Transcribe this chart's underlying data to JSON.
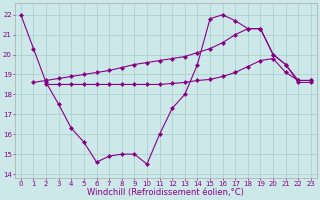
{
  "xlabel": "Windchill (Refroidissement éolien,°C)",
  "background_color": "#cce8e8",
  "grid_color": "#aacccc",
  "line_color": "#880088",
  "xlim": [
    -0.5,
    23.5
  ],
  "ylim": [
    13.8,
    22.6
  ],
  "xticks": [
    0,
    1,
    2,
    3,
    4,
    5,
    6,
    7,
    8,
    9,
    10,
    11,
    12,
    13,
    14,
    15,
    16,
    17,
    18,
    19,
    20,
    21,
    22,
    23
  ],
  "yticks": [
    14,
    15,
    16,
    17,
    18,
    19,
    20,
    21,
    22
  ],
  "line1_x": [
    0,
    1,
    2,
    3,
    4,
    5,
    6,
    7,
    8,
    9,
    10,
    11,
    12,
    13,
    14,
    15,
    16,
    17,
    18,
    19,
    20,
    21,
    22,
    23
  ],
  "line1_y": [
    22.0,
    20.3,
    18.6,
    17.5,
    16.3,
    15.6,
    14.6,
    14.9,
    15.0,
    15.0,
    14.5,
    16.0,
    17.3,
    18.0,
    19.5,
    21.8,
    22.0,
    21.7,
    21.3,
    21.3,
    20.0,
    19.5,
    18.6,
    18.6
  ],
  "line2_x": [
    1,
    2,
    3,
    4,
    5,
    6,
    7,
    8,
    9,
    10,
    11,
    12,
    13,
    14,
    15,
    16,
    17,
    18,
    19,
    20,
    21,
    22,
    23
  ],
  "line2_y": [
    18.6,
    18.7,
    18.8,
    18.9,
    19.0,
    19.1,
    19.2,
    19.35,
    19.5,
    19.6,
    19.7,
    19.8,
    19.9,
    20.1,
    20.3,
    20.6,
    21.0,
    21.3,
    21.3,
    20.0,
    19.5,
    18.7,
    18.7
  ],
  "line3_x": [
    2,
    3,
    4,
    5,
    6,
    7,
    8,
    9,
    10,
    11,
    12,
    13,
    14,
    15,
    16,
    17,
    18,
    19,
    20,
    21,
    22,
    23
  ],
  "line3_y": [
    18.5,
    18.5,
    18.5,
    18.5,
    18.5,
    18.5,
    18.5,
    18.5,
    18.5,
    18.5,
    18.55,
    18.6,
    18.7,
    18.75,
    18.9,
    19.1,
    19.4,
    19.7,
    19.8,
    19.1,
    18.7,
    18.7
  ],
  "marker": "D",
  "markersize": 2.0,
  "linewidth": 0.8,
  "tick_fontsize": 5.0,
  "xlabel_fontsize": 6.0
}
